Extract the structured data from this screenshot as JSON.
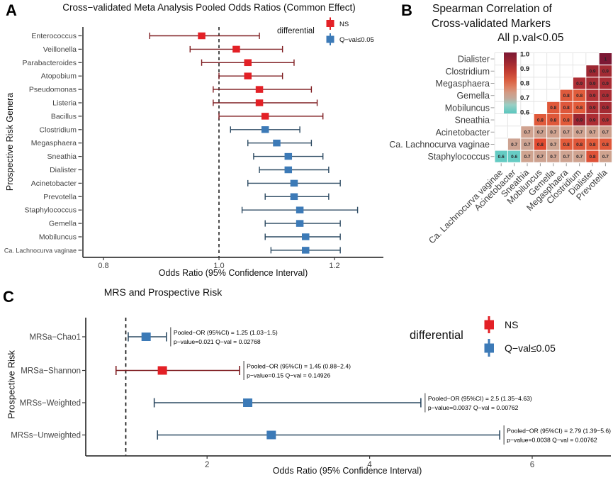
{
  "figure": {
    "panel_labels": {
      "a": "A",
      "b": "B",
      "c": "C"
    }
  },
  "chart_data": [
    {
      "panel": "A",
      "type": "forest",
      "title": "Cross−validated Meta Analysis Pooled Odds Ratios (Common Effect)",
      "xlabel": "Odds Ratio (95% Confidence Interval)",
      "ylabel": "Prospective Risk Genera",
      "xlim": [
        0.72,
        1.28
      ],
      "x_ticks": [
        0.8,
        1.0,
        1.2
      ],
      "x_tick_labels": [
        "0.8",
        "1.0",
        "1.2"
      ],
      "ref_line": 1.0,
      "grid": false,
      "legend": {
        "title": "differential",
        "position": "inside-top-right",
        "items": [
          {
            "label": "NS",
            "color": "#e32026"
          },
          {
            "label": "Q−val≤0.05",
            "color": "#3c7ab7"
          }
        ]
      },
      "colors": {
        "NS": {
          "fill": "#e32026",
          "line": "#7f1d21"
        },
        "sig": {
          "fill": "#3c7ab7",
          "line": "#2c4a62"
        }
      },
      "rows": [
        {
          "genus": "Enterococcus",
          "or": 0.97,
          "lo": 0.88,
          "hi": 1.07,
          "group": "NS"
        },
        {
          "genus": "Veillonella",
          "or": 1.03,
          "lo": 0.95,
          "hi": 1.11,
          "group": "NS"
        },
        {
          "genus": "Parabacteroides",
          "or": 1.05,
          "lo": 0.97,
          "hi": 1.13,
          "group": "NS"
        },
        {
          "genus": "Atopobium",
          "or": 1.05,
          "lo": 1.0,
          "hi": 1.11,
          "group": "NS"
        },
        {
          "genus": "Pseudomonas",
          "or": 1.07,
          "lo": 0.99,
          "hi": 1.16,
          "group": "NS"
        },
        {
          "genus": "Listeria",
          "or": 1.07,
          "lo": 0.99,
          "hi": 1.17,
          "group": "NS"
        },
        {
          "genus": "Bacillus",
          "or": 1.08,
          "lo": 1.0,
          "hi": 1.18,
          "group": "NS"
        },
        {
          "genus": "Clostridium",
          "or": 1.08,
          "lo": 1.02,
          "hi": 1.14,
          "group": "sig"
        },
        {
          "genus": "Megasphaera",
          "or": 1.1,
          "lo": 1.05,
          "hi": 1.16,
          "group": "sig"
        },
        {
          "genus": "Sneathia",
          "or": 1.12,
          "lo": 1.06,
          "hi": 1.18,
          "group": "sig"
        },
        {
          "genus": "Dialister",
          "or": 1.12,
          "lo": 1.07,
          "hi": 1.19,
          "group": "sig"
        },
        {
          "genus": "Acinetobacter",
          "or": 1.13,
          "lo": 1.05,
          "hi": 1.21,
          "group": "sig"
        },
        {
          "genus": "Prevotella",
          "or": 1.13,
          "lo": 1.08,
          "hi": 1.19,
          "group": "sig"
        },
        {
          "genus": "Staphylococcus",
          "or": 1.14,
          "lo": 1.04,
          "hi": 1.24,
          "group": "sig"
        },
        {
          "genus": "Gemella",
          "or": 1.14,
          "lo": 1.08,
          "hi": 1.21,
          "group": "sig"
        },
        {
          "genus": "Mobiluncus",
          "or": 1.15,
          "lo": 1.08,
          "hi": 1.21,
          "group": "sig"
        },
        {
          "genus": "Ca. Lachnocurva vaginae",
          "or": 1.15,
          "lo": 1.09,
          "hi": 1.21,
          "group": "sig"
        }
      ]
    },
    {
      "panel": "B",
      "type": "heatmap",
      "title_lines": [
        "Spearman Correlation of",
        "Cross-validated Markers",
        "All p.val<0.05"
      ],
      "row_labels": [
        "Dialister",
        "Clostridium",
        "Megasphaera",
        "Gemella",
        "Mobiluncus",
        "Sneathia",
        "Acinetobacter",
        "Ca. Lachnocurva vaginae",
        "Staphylococcus"
      ],
      "col_labels": [
        "Ca. Lachnocurva vaginae",
        "Acinetobacter",
        "Sneathia",
        "Mobiluncus",
        "Gemella",
        "Megasphaera",
        "Clostridium",
        "Dialister",
        "Prevotella"
      ],
      "colorbar": {
        "tick_labels": [
          "1.0",
          "0.9",
          "0.8",
          "0.7",
          "0.6"
        ],
        "gradient_colors": [
          "#7c1834",
          "#992431",
          "#c03a31",
          "#d95c3f",
          "#dd8062",
          "#d29b85",
          "#c2a99b",
          "#99cfc4",
          "#5ac7bf"
        ],
        "gradient_offsets": [
          0,
          0.14,
          0.3,
          0.45,
          0.57,
          0.66,
          0.75,
          0.86,
          1
        ]
      },
      "rows": [
        {
          "label": "Dialister",
          "cells": [
            {
              "col": 9,
              "v": "1",
              "color": "#7c1834"
            }
          ]
        },
        {
          "label": "Clostridium",
          "cells": [
            {
              "col": 8,
              "v": "0.9",
              "color": "#9d2732"
            },
            {
              "col": 9,
              "v": "0.9",
              "color": "#a22a33"
            }
          ]
        },
        {
          "label": "Megasphaera",
          "cells": [
            {
              "col": 7,
              "v": "0.9",
              "color": "#ae2e35"
            },
            {
              "col": 8,
              "v": "0.9",
              "color": "#a52b33"
            },
            {
              "col": 9,
              "v": "0.9",
              "color": "#a92c34"
            }
          ]
        },
        {
          "label": "Gemella",
          "cells": [
            {
              "col": 6,
              "v": "0.8",
              "color": "#de5a3c"
            },
            {
              "col": 7,
              "v": "0.8",
              "color": "#e05c3b"
            },
            {
              "col": 8,
              "v": "0.9",
              "color": "#b43336"
            },
            {
              "col": 9,
              "v": "0.9",
              "color": "#ab2d34"
            }
          ]
        },
        {
          "label": "Mobiluncus",
          "cells": [
            {
              "col": 5,
              "v": "0.8",
              "color": "#e0593a"
            },
            {
              "col": 6,
              "v": "0.8",
              "color": "#de573b"
            },
            {
              "col": 7,
              "v": "0.8",
              "color": "#e25b3a"
            },
            {
              "col": 8,
              "v": "0.9",
              "color": "#b03134"
            },
            {
              "col": 9,
              "v": "0.9",
              "color": "#a52b33"
            }
          ]
        },
        {
          "label": "Sneathia",
          "cells": [
            {
              "col": 4,
              "v": "0.8",
              "color": "#e05a3b"
            },
            {
              "col": 5,
              "v": "0.8",
              "color": "#df583a"
            },
            {
              "col": 6,
              "v": "0.8",
              "color": "#e15a39"
            },
            {
              "col": 7,
              "v": "0.9",
              "color": "#9c2531"
            },
            {
              "col": 8,
              "v": "0.9",
              "color": "#ad2d33"
            },
            {
              "col": 9,
              "v": "0.9",
              "color": "#b23134"
            }
          ]
        },
        {
          "label": "Acinetobacter",
          "cells": [
            {
              "col": 3,
              "v": "0.7",
              "color": "#d0a391"
            },
            {
              "col": 4,
              "v": "0.7",
              "color": "#cda08e"
            },
            {
              "col": 5,
              "v": "0.7",
              "color": "#cfa28f"
            },
            {
              "col": 6,
              "v": "0.7",
              "color": "#cea190"
            },
            {
              "col": 7,
              "v": "0.7",
              "color": "#d0a391"
            },
            {
              "col": 8,
              "v": "0.7",
              "color": "#cfa28f"
            },
            {
              "col": 9,
              "v": "0.7",
              "color": "#cda08e"
            }
          ]
        },
        {
          "label": "Ca. Lachnocurva vaginae",
          "cells": [
            {
              "col": 2,
              "v": "0.7",
              "color": "#cda392"
            },
            {
              "col": 3,
              "v": "0.7",
              "color": "#cda392"
            },
            {
              "col": 4,
              "v": "0.8",
              "color": "#e14b31"
            },
            {
              "col": 5,
              "v": "0.7",
              "color": "#cfa591"
            },
            {
              "col": 6,
              "v": "0.8",
              "color": "#e25b3a"
            },
            {
              "col": 7,
              "v": "0.8",
              "color": "#df5739"
            },
            {
              "col": 8,
              "v": "0.8",
              "color": "#e15a3a"
            },
            {
              "col": 9,
              "v": "0.8",
              "color": "#df583a"
            }
          ]
        },
        {
          "label": "Staphylococcus",
          "cells": [
            {
              "col": 1,
              "v": "0.6",
              "color": "#64cbc3"
            },
            {
              "col": 2,
              "v": "0.6",
              "color": "#67ccc4"
            },
            {
              "col": 3,
              "v": "0.7",
              "color": "#cfa490"
            },
            {
              "col": 4,
              "v": "0.7",
              "color": "#cda290"
            },
            {
              "col": 5,
              "v": "0.7",
              "color": "#d0a492"
            },
            {
              "col": 6,
              "v": "0.7",
              "color": "#cea391"
            },
            {
              "col": 7,
              "v": "0.7",
              "color": "#cfa390"
            },
            {
              "col": 8,
              "v": "0.8",
              "color": "#de5238"
            },
            {
              "col": 9,
              "v": "0.7",
              "color": "#cfa38f"
            }
          ]
        }
      ]
    },
    {
      "panel": "C",
      "type": "forest",
      "title": "MRS and Prospective Risk",
      "xlabel": "Odds Ratio (95% Confidence Interval)",
      "ylabel": "Prospective Risk",
      "xlim": [
        0.5,
        7.0
      ],
      "x_ticks": [
        2,
        4,
        6
      ],
      "x_tick_labels": [
        "2",
        "4",
        "6"
      ],
      "ref_line": 1,
      "grid": false,
      "legend": {
        "title": "differential",
        "position": "inside-top-right",
        "items": [
          {
            "label": "NS",
            "color": "#e32026"
          },
          {
            "label": "Q−val≤0.05",
            "color": "#3c7ab7"
          }
        ]
      },
      "colors": {
        "NS": {
          "fill": "#e32026",
          "line": "#7f1d21"
        },
        "sig": {
          "fill": "#3c7ab7",
          "line": "#2c4a62"
        }
      },
      "rows": [
        {
          "label": "MRSa−Chao1",
          "or": 1.25,
          "lo": 1.03,
          "hi": 1.5,
          "group": "sig",
          "ann1": "Pooled−OR (95%CI) = 1.25 (1.03−1.5)",
          "ann2": "p−value=0.021 Q−val = 0.02768"
        },
        {
          "label": "MRSa−Shannon",
          "or": 1.45,
          "lo": 0.88,
          "hi": 2.4,
          "group": "NS",
          "ann1": "Pooled−OR (95%CI) = 1.45 (0.88−2.4)",
          "ann2": "p−value=0.15 Q−val = 0.14926"
        },
        {
          "label": "MRSs−Weighted",
          "or": 2.5,
          "lo": 1.35,
          "hi": 4.63,
          "group": "sig",
          "ann1": "Pooled−OR (95%CI) = 2.5 (1.35−4.63)",
          "ann2": "p−value=0.0037 Q−val = 0.00762"
        },
        {
          "label": "MRSs−Unweighted",
          "or": 2.79,
          "lo": 1.39,
          "hi": 5.6,
          "group": "sig",
          "ann1": "Pooled−OR (95%CI) = 2.79 (1.39−5.6)",
          "ann2": "p−value=0.0038 Q−val = 0.00762"
        }
      ]
    }
  ]
}
